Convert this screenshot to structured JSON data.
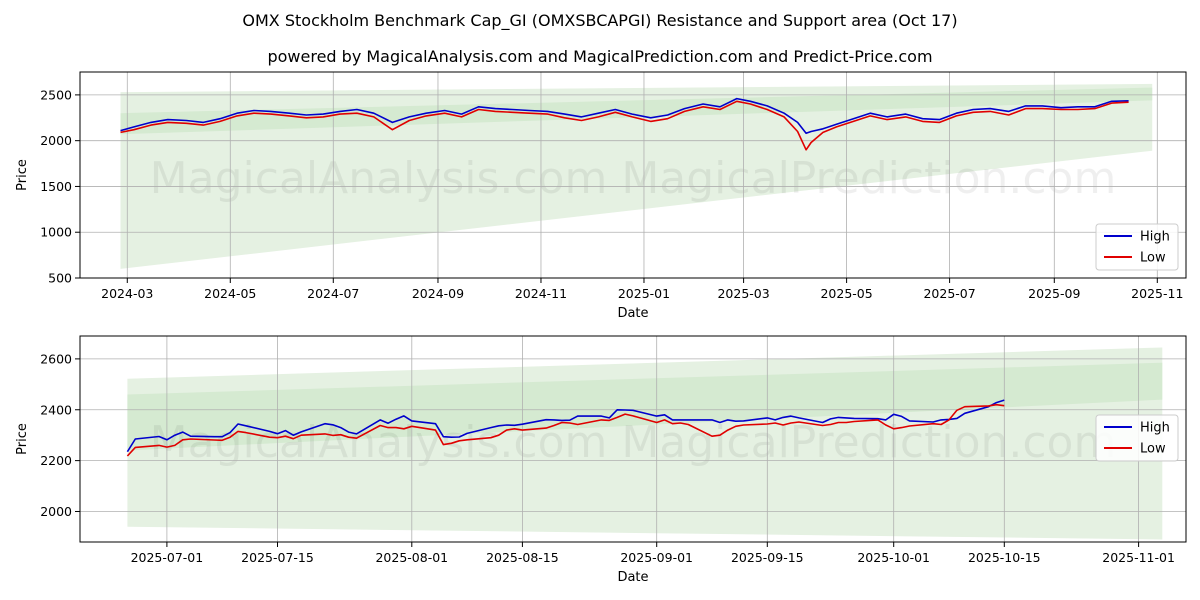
{
  "figure": {
    "title": "OMX Stockholm Benchmark Cap_GI (OMXSBCAPGI) Resistance and Support area (Oct 17)",
    "subtitle": "powered by MagicalAnalysis.com and MagicalPrediction.com and Predict-Price.com",
    "watermark": "MagicalAnalysis.com    MagicalPrediction.com"
  },
  "colors": {
    "high": "#0000cc",
    "low": "#e00000",
    "band_light": "#e5f1e2",
    "band_dark": "#cfe7cb",
    "grid": "#b0b0b0"
  },
  "chart_data": [
    {
      "type": "line",
      "xlabel": "Date",
      "ylabel": "Price",
      "grid": true,
      "legend": "bottom-right",
      "xlim": [
        "2024-02-02",
        "2025-11-18"
      ],
      "ylim": [
        500,
        2750
      ],
      "xticks": [
        "2024-03",
        "2024-05",
        "2024-07",
        "2024-09",
        "2024-11",
        "2025-01",
        "2025-03",
        "2025-05",
        "2025-07",
        "2025-09",
        "2025-11"
      ],
      "yticks": [
        500,
        1000,
        1500,
        2000,
        2500
      ],
      "x": [
        "2024-02-26",
        "2024-03-05",
        "2024-03-15",
        "2024-03-25",
        "2024-04-05",
        "2024-04-15",
        "2024-04-25",
        "2024-05-05",
        "2024-05-15",
        "2024-05-25",
        "2024-06-05",
        "2024-06-15",
        "2024-06-25",
        "2024-07-05",
        "2024-07-15",
        "2024-07-25",
        "2024-08-05",
        "2024-08-15",
        "2024-08-25",
        "2024-09-05",
        "2024-09-15",
        "2024-09-25",
        "2024-10-05",
        "2024-10-15",
        "2024-10-25",
        "2024-11-05",
        "2024-11-15",
        "2024-11-25",
        "2024-12-05",
        "2024-12-15",
        "2024-12-25",
        "2025-01-05",
        "2025-01-15",
        "2025-01-25",
        "2025-02-05",
        "2025-02-15",
        "2025-02-25",
        "2025-03-05",
        "2025-03-15",
        "2025-03-25",
        "2025-04-02",
        "2025-04-07",
        "2025-04-10",
        "2025-04-17",
        "2025-04-25",
        "2025-05-05",
        "2025-05-15",
        "2025-05-25",
        "2025-06-05",
        "2025-06-15",
        "2025-06-25",
        "2025-07-05",
        "2025-07-15",
        "2025-07-25",
        "2025-08-05",
        "2025-08-15",
        "2025-08-25",
        "2025-09-05",
        "2025-09-15",
        "2025-09-25",
        "2025-10-05",
        "2025-10-15"
      ],
      "series": [
        {
          "name": "High",
          "values": [
            2110,
            2150,
            2200,
            2230,
            2220,
            2200,
            2240,
            2300,
            2330,
            2320,
            2300,
            2280,
            2290,
            2320,
            2340,
            2300,
            2200,
            2260,
            2300,
            2330,
            2290,
            2370,
            2350,
            2340,
            2330,
            2320,
            2290,
            2260,
            2300,
            2340,
            2290,
            2250,
            2280,
            2350,
            2400,
            2370,
            2460,
            2430,
            2380,
            2300,
            2200,
            2080,
            2100,
            2130,
            2180,
            2240,
            2300,
            2260,
            2290,
            2240,
            2230,
            2300,
            2340,
            2350,
            2320,
            2380,
            2380,
            2360,
            2370,
            2370,
            2430,
            2435
          ]
        },
        {
          "name": "Low",
          "values": [
            2090,
            2120,
            2170,
            2200,
            2190,
            2170,
            2210,
            2270,
            2300,
            2290,
            2270,
            2250,
            2260,
            2290,
            2300,
            2260,
            2120,
            2220,
            2270,
            2300,
            2260,
            2340,
            2320,
            2310,
            2300,
            2290,
            2250,
            2220,
            2260,
            2310,
            2260,
            2210,
            2240,
            2320,
            2370,
            2340,
            2430,
            2400,
            2340,
            2260,
            2100,
            1900,
            1980,
            2090,
            2150,
            2210,
            2270,
            2230,
            2260,
            2210,
            2200,
            2270,
            2310,
            2320,
            2280,
            2350,
            2350,
            2340,
            2340,
            2350,
            2410,
            2420
          ]
        }
      ],
      "bands": [
        {
          "name": "outer",
          "x": [
            "2024-02-26",
            "2025-10-29"
          ],
          "upper": [
            2530,
            2620
          ],
          "lower": [
            600,
            1890
          ]
        },
        {
          "name": "inner",
          "x": [
            "2024-02-26",
            "2025-10-29"
          ],
          "upper": [
            2300,
            2580
          ],
          "lower": [
            2070,
            2440
          ]
        }
      ]
    },
    {
      "type": "line",
      "xlabel": "Date",
      "ylabel": "Price",
      "grid": true,
      "legend": "right",
      "xlim": [
        "2025-06-20",
        "2025-11-07"
      ],
      "ylim": [
        1880,
        2690
      ],
      "xticks": [
        "2025-07-01",
        "2025-07-15",
        "2025-08-01",
        "2025-08-15",
        "2025-09-01",
        "2025-09-15",
        "2025-10-01",
        "2025-10-15",
        "2025-11-01"
      ],
      "yticks": [
        2000,
        2200,
        2400,
        2600
      ],
      "x": [
        "2025-06-26",
        "2025-06-27",
        "2025-06-30",
        "2025-07-01",
        "2025-07-02",
        "2025-07-03",
        "2025-07-04",
        "2025-07-07",
        "2025-07-08",
        "2025-07-09",
        "2025-07-10",
        "2025-07-11",
        "2025-07-14",
        "2025-07-15",
        "2025-07-16",
        "2025-07-17",
        "2025-07-18",
        "2025-07-21",
        "2025-07-22",
        "2025-07-23",
        "2025-07-24",
        "2025-07-25",
        "2025-07-28",
        "2025-07-29",
        "2025-07-30",
        "2025-07-31",
        "2025-08-01",
        "2025-08-04",
        "2025-08-05",
        "2025-08-06",
        "2025-08-07",
        "2025-08-08",
        "2025-08-11",
        "2025-08-12",
        "2025-08-13",
        "2025-08-14",
        "2025-08-15",
        "2025-08-18",
        "2025-08-19",
        "2025-08-20",
        "2025-08-21",
        "2025-08-22",
        "2025-08-25",
        "2025-08-26",
        "2025-08-27",
        "2025-08-28",
        "2025-08-29",
        "2025-09-01",
        "2025-09-02",
        "2025-09-03",
        "2025-09-04",
        "2025-09-05",
        "2025-09-08",
        "2025-09-09",
        "2025-09-10",
        "2025-09-11",
        "2025-09-12",
        "2025-09-15",
        "2025-09-16",
        "2025-09-17",
        "2025-09-18",
        "2025-09-19",
        "2025-09-22",
        "2025-09-23",
        "2025-09-24",
        "2025-09-25",
        "2025-09-26",
        "2025-09-29",
        "2025-09-30",
        "2025-10-01",
        "2025-10-02",
        "2025-10-03",
        "2025-10-06",
        "2025-10-07",
        "2025-10-08",
        "2025-10-09",
        "2025-10-10",
        "2025-10-13",
        "2025-10-14",
        "2025-10-15"
      ],
      "series": [
        {
          "name": "High",
          "values": [
            2235,
            2285,
            2295,
            2282,
            2300,
            2312,
            2296,
            2294,
            2294,
            2310,
            2344,
            2337,
            2315,
            2306,
            2318,
            2300,
            2313,
            2345,
            2341,
            2330,
            2312,
            2305,
            2360,
            2347,
            2363,
            2376,
            2356,
            2345,
            2294,
            2292,
            2293,
            2307,
            2330,
            2337,
            2340,
            2339,
            2343,
            2361,
            2360,
            2358,
            2359,
            2375,
            2375,
            2368,
            2400,
            2399,
            2398,
            2375,
            2380,
            2360,
            2360,
            2360,
            2360,
            2350,
            2360,
            2355,
            2356,
            2368,
            2360,
            2370,
            2375,
            2368,
            2350,
            2364,
            2370,
            2368,
            2366,
            2365,
            2360,
            2382,
            2374,
            2356,
            2352,
            2360,
            2362,
            2366,
            2386,
            2412,
            2428,
            2438
          ]
        },
        {
          "name": "Low",
          "values": [
            2218,
            2252,
            2260,
            2253,
            2260,
            2282,
            2285,
            2281,
            2280,
            2292,
            2315,
            2310,
            2292,
            2290,
            2296,
            2286,
            2300,
            2305,
            2299,
            2302,
            2292,
            2288,
            2338,
            2330,
            2330,
            2325,
            2335,
            2320,
            2263,
            2268,
            2278,
            2282,
            2290,
            2300,
            2320,
            2325,
            2320,
            2328,
            2338,
            2350,
            2348,
            2342,
            2360,
            2358,
            2370,
            2383,
            2376,
            2350,
            2360,
            2345,
            2348,
            2342,
            2296,
            2300,
            2320,
            2335,
            2340,
            2344,
            2348,
            2340,
            2348,
            2352,
            2338,
            2342,
            2350,
            2350,
            2354,
            2360,
            2340,
            2325,
            2330,
            2336,
            2345,
            2342,
            2360,
            2398,
            2412,
            2415,
            2420,
            2416
          ]
        }
      ],
      "bands": [
        {
          "name": "outer",
          "x": [
            "2025-06-26",
            "2025-11-04"
          ],
          "upper": [
            2522,
            2645
          ],
          "lower": [
            1940,
            1890
          ]
        },
        {
          "name": "inner",
          "x": [
            "2025-06-26",
            "2025-11-04"
          ],
          "upper": [
            2460,
            2585
          ],
          "lower": [
            2240,
            2440
          ]
        }
      ]
    }
  ]
}
